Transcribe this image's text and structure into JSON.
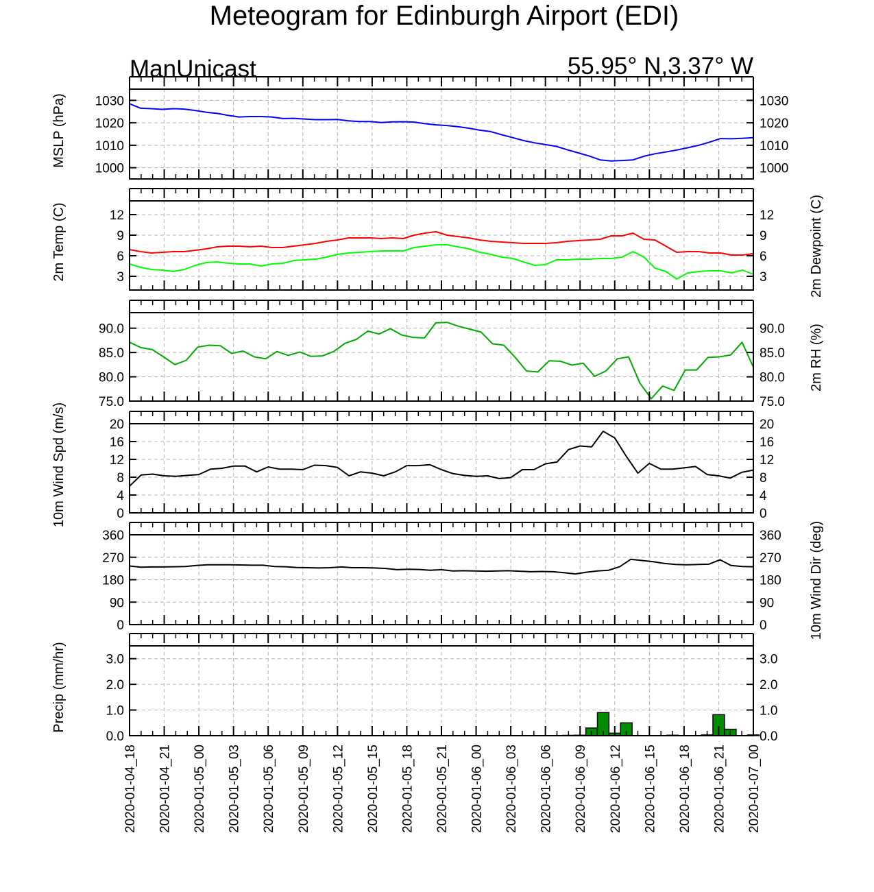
{
  "page": {
    "title": "Meteogram for Edinburgh Airport (EDI)",
    "source_label": "ManUnicast",
    "location_label": "55.95° N,3.37° W"
  },
  "chart_data": {
    "type": "line",
    "x_ticks": [
      "2020-01-04_18",
      "2020-01-04_21",
      "2020-01-05_00",
      "2020-01-05_03",
      "2020-01-05_06",
      "2020-01-05_09",
      "2020-01-05_12",
      "2020-01-05_15",
      "2020-01-05_18",
      "2020-01-05_21",
      "2020-01-06_00",
      "2020-01-06_03",
      "2020-01-06_06",
      "2020-01-06_09",
      "2020-01-06_12",
      "2020-01-06_15",
      "2020-01-06_18",
      "2020-01-06_21",
      "2020-01-07_00"
    ],
    "x_hours_range": [
      0,
      54
    ],
    "grid": true,
    "panels": [
      {
        "id": "mslp",
        "type": "line",
        "ylabel": "MSLP (hPa)",
        "ylabel_right": "",
        "ylim": [
          995,
          1035
        ],
        "ticks": [
          1000,
          1010,
          1020,
          1030
        ],
        "tick_format": "int",
        "right_ticks": true,
        "series": [
          {
            "color": "#0000ff",
            "values": [
              1028.5,
              1026.5,
              1026.3,
              1026.0,
              1026.3,
              1026.1,
              1025.5,
              1024.7,
              1024.2,
              1023.3,
              1022.6,
              1022.8,
              1022.8,
              1022.6,
              1021.9,
              1022.0,
              1021.7,
              1021.4,
              1021.4,
              1021.5,
              1020.9,
              1020.6,
              1020.6,
              1020.1,
              1020.4,
              1020.5,
              1020.3,
              1019.6,
              1019.1,
              1018.8,
              1018.3,
              1017.6,
              1016.7,
              1016.1,
              1014.7,
              1013.4,
              1012.1,
              1011.1,
              1010.3,
              1009.5,
              1008.0,
              1006.6,
              1005.2,
              1003.5,
              1003.0,
              1003.2,
              1003.5,
              1005.1,
              1006.2,
              1007.0,
              1007.9,
              1008.9,
              1010.0,
              1011.4,
              1013.0,
              1012.9,
              1013.1,
              1013.4
            ]
          }
        ]
      },
      {
        "id": "temp",
        "type": "line",
        "ylabel": "2m Temp (C)",
        "ylabel_right": "2m Dewpoint (C)",
        "ylim": [
          1,
          14
        ],
        "ticks": [
          3,
          6,
          9,
          12
        ],
        "tick_format": "int",
        "right_ticks": true,
        "series": [
          {
            "color": "#ff0000",
            "values": [
              6.9,
              6.6,
              6.4,
              6.5,
              6.6,
              6.6,
              6.8,
              7.0,
              7.3,
              7.4,
              7.4,
              7.3,
              7.4,
              7.2,
              7.2,
              7.4,
              7.6,
              7.8,
              8.1,
              8.3,
              8.6,
              8.6,
              8.6,
              8.5,
              8.6,
              8.5,
              9.0,
              9.3,
              9.5,
              9.0,
              8.8,
              8.6,
              8.3,
              8.1,
              8.0,
              7.9,
              7.8,
              7.8,
              7.8,
              7.9,
              8.1,
              8.2,
              8.3,
              8.4,
              8.9,
              8.9,
              9.3,
              8.4,
              8.3,
              7.4,
              6.5,
              6.6,
              6.6,
              6.4,
              6.4,
              6.1,
              6.1,
              6.3
            ]
          },
          {
            "color": "#00ff00",
            "values": [
              4.8,
              4.3,
              4.0,
              3.9,
              3.7,
              4.0,
              4.6,
              5.0,
              5.1,
              4.9,
              4.8,
              4.8,
              4.5,
              4.8,
              4.9,
              5.3,
              5.4,
              5.5,
              5.8,
              6.2,
              6.4,
              6.5,
              6.6,
              6.7,
              6.7,
              6.7,
              7.2,
              7.4,
              7.6,
              7.6,
              7.3,
              7.0,
              6.5,
              6.2,
              5.8,
              5.6,
              5.1,
              4.6,
              4.7,
              5.4,
              5.4,
              5.5,
              5.5,
              5.6,
              5.6,
              5.8,
              6.6,
              5.8,
              4.2,
              3.7,
              2.6,
              3.5,
              3.7,
              3.8,
              3.8,
              3.5,
              3.9,
              3.3
            ]
          }
        ]
      },
      {
        "id": "rh",
        "type": "line",
        "ylabel": "",
        "ylabel_right": "2m RH (%)",
        "ylim": [
          75,
          93.2
        ],
        "ticks": [
          75,
          80,
          85,
          90
        ],
        "tick_format": "fixed1",
        "right_ticks": true,
        "series": [
          {
            "color": "#00aa00",
            "values": [
              87.1,
              86.0,
              85.6,
              84.1,
              82.5,
              83.4,
              86.1,
              86.5,
              86.4,
              84.8,
              85.3,
              84.1,
              83.7,
              85.2,
              84.4,
              85.1,
              84.2,
              84.3,
              85.2,
              86.9,
              87.7,
              89.4,
              88.8,
              89.9,
              88.6,
              88.1,
              88.0,
              91.1,
              91.2,
              90.4,
              89.8,
              89.2,
              86.8,
              86.5,
              84.0,
              81.2,
              81.0,
              83.3,
              83.2,
              82.4,
              82.8,
              80.1,
              81.2,
              83.7,
              84.1,
              78.7,
              75.5,
              78.1,
              77.2,
              81.4,
              81.4,
              84.0,
              84.1,
              84.5,
              87.1,
              82.0
            ]
          }
        ]
      },
      {
        "id": "wspd",
        "type": "line",
        "ylabel": "10m Wind Spd (m/s)",
        "ylabel_right": "",
        "ylim": [
          0,
          20
        ],
        "ticks": [
          0,
          4,
          8,
          12,
          16,
          20
        ],
        "tick_format": "int",
        "right_ticks": true,
        "series": [
          {
            "color": "#000000",
            "values": [
              6.0,
              8.5,
              8.7,
              8.3,
              8.2,
              8.4,
              8.6,
              9.8,
              10.0,
              10.5,
              10.5,
              9.2,
              10.3,
              9.8,
              9.8,
              9.7,
              10.7,
              10.6,
              10.2,
              8.3,
              9.2,
              8.9,
              8.3,
              9.2,
              10.6,
              10.6,
              10.8,
              9.7,
              8.8,
              8.4,
              8.2,
              8.3,
              7.7,
              7.9,
              9.7,
              9.7,
              11.0,
              11.4,
              14.2,
              15.0,
              14.8,
              18.3,
              16.8,
              12.7,
              8.9,
              11.1,
              9.8,
              9.8,
              10.1,
              10.4,
              8.6,
              8.3,
              7.8,
              9.1,
              9.6
            ]
          }
        ]
      },
      {
        "id": "wdir",
        "type": "line",
        "ylabel": "",
        "ylabel_right": "10m Wind Dir (deg)",
        "ylim": [
          0,
          360
        ],
        "ticks": [
          0,
          90,
          180,
          270,
          360
        ],
        "tick_format": "int",
        "right_ticks": true,
        "series": [
          {
            "color": "#000000",
            "values": [
              235,
              230,
              231,
              231,
              232,
              233,
              237,
              240,
              240,
              240,
              239,
              238,
              238,
              233,
              232,
              229,
              228,
              227,
              228,
              231,
              228,
              228,
              227,
              225,
              220,
              222,
              221,
              218,
              220,
              215,
              216,
              215,
              214,
              215,
              216,
              214,
              212,
              213,
              212,
              208,
              203,
              210,
              215,
              218,
              232,
              262,
              257,
              252,
              245,
              241,
              240,
              241,
              242,
              260,
              237,
              233,
              232
            ]
          }
        ]
      },
      {
        "id": "precip",
        "type": "bar",
        "ylabel": "Precip (mm/hr)",
        "ylabel_right": "",
        "ylim": [
          0,
          3.5
        ],
        "ticks": [
          0,
          1,
          2,
          3
        ],
        "tick_format": "fixed1",
        "right_ticks": true,
        "bar_color": "#008c00",
        "bars": [
          {
            "hour": 38,
            "value": 0.0
          },
          {
            "hour": 39,
            "value": 0.02
          },
          {
            "hour": 40,
            "value": 0.3
          },
          {
            "hour": 41,
            "value": 0.9
          },
          {
            "hour": 42,
            "value": 0.1
          },
          {
            "hour": 43,
            "value": 0.5
          },
          {
            "hour": 47,
            "value": 0.02
          },
          {
            "hour": 50,
            "value": 0.03
          },
          {
            "hour": 51,
            "value": 0.82
          },
          {
            "hour": 52,
            "value": 0.25
          },
          {
            "hour": 54,
            "value": 0.03
          }
        ]
      }
    ]
  }
}
